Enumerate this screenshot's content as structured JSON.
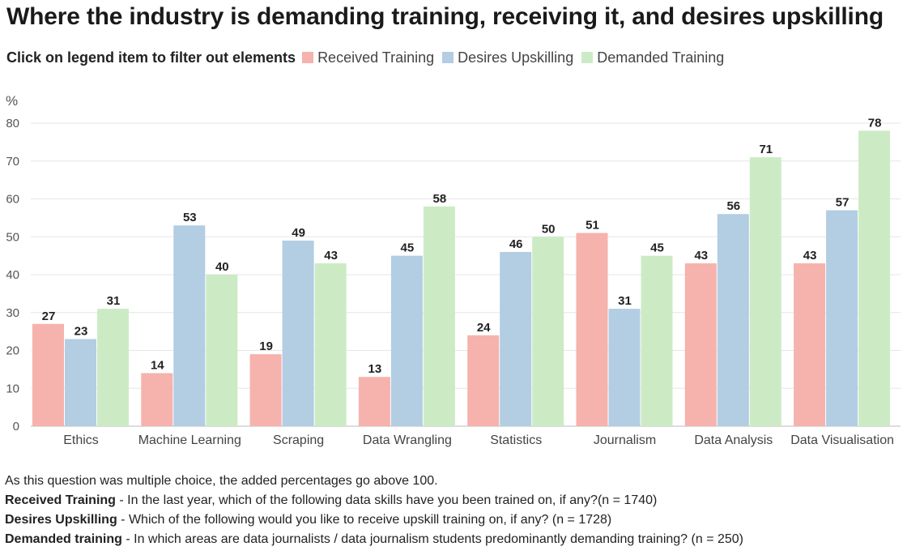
{
  "title": "Where the industry is demanding training, receiving it, and desires upskilling",
  "legend_hint": "Click on legend item to filter out elements",
  "colors": {
    "received": "#f6b2ad",
    "desires": "#b3cde3",
    "demanded": "#ccebc5"
  },
  "chart_data": {
    "type": "bar",
    "ylabel": "%",
    "ylim": [
      0,
      80
    ],
    "yticks": [
      0,
      10,
      20,
      30,
      40,
      50,
      60,
      70,
      80
    ],
    "grid": true,
    "legend_position": "top-left",
    "categories": [
      "Ethics",
      "Machine Learning",
      "Scraping",
      "Data Wrangling",
      "Statistics",
      "Journalism",
      "Data Analysis",
      "Data Visualisation"
    ],
    "series": [
      {
        "name": "Received Training",
        "color": "#f6b2ad",
        "values": [
          27,
          14,
          19,
          13,
          24,
          51,
          43,
          43
        ]
      },
      {
        "name": "Desires Upskilling",
        "color": "#b3cde3",
        "values": [
          23,
          53,
          49,
          45,
          46,
          31,
          56,
          57
        ]
      },
      {
        "name": "Demanded Training",
        "color": "#ccebc5",
        "values": [
          31,
          40,
          43,
          58,
          50,
          45,
          71,
          78
        ]
      }
    ]
  },
  "notes": {
    "line1": "As this question was multiple choice, the added percentages go above 100.",
    "received_label": "Received Training",
    "received_text": " - In the last year, which of the following data skills have you been trained on, if any?(n = 1740)",
    "desires_label": "Desires Upskilling",
    "desires_text": " - Which of the following would you like to receive upskill training on, if any? (n = 1728)",
    "demanded_label": "Demanded training",
    "demanded_text": " - In which areas are data journalists / data journalism students predominantly demanding training? (n = 250)"
  }
}
